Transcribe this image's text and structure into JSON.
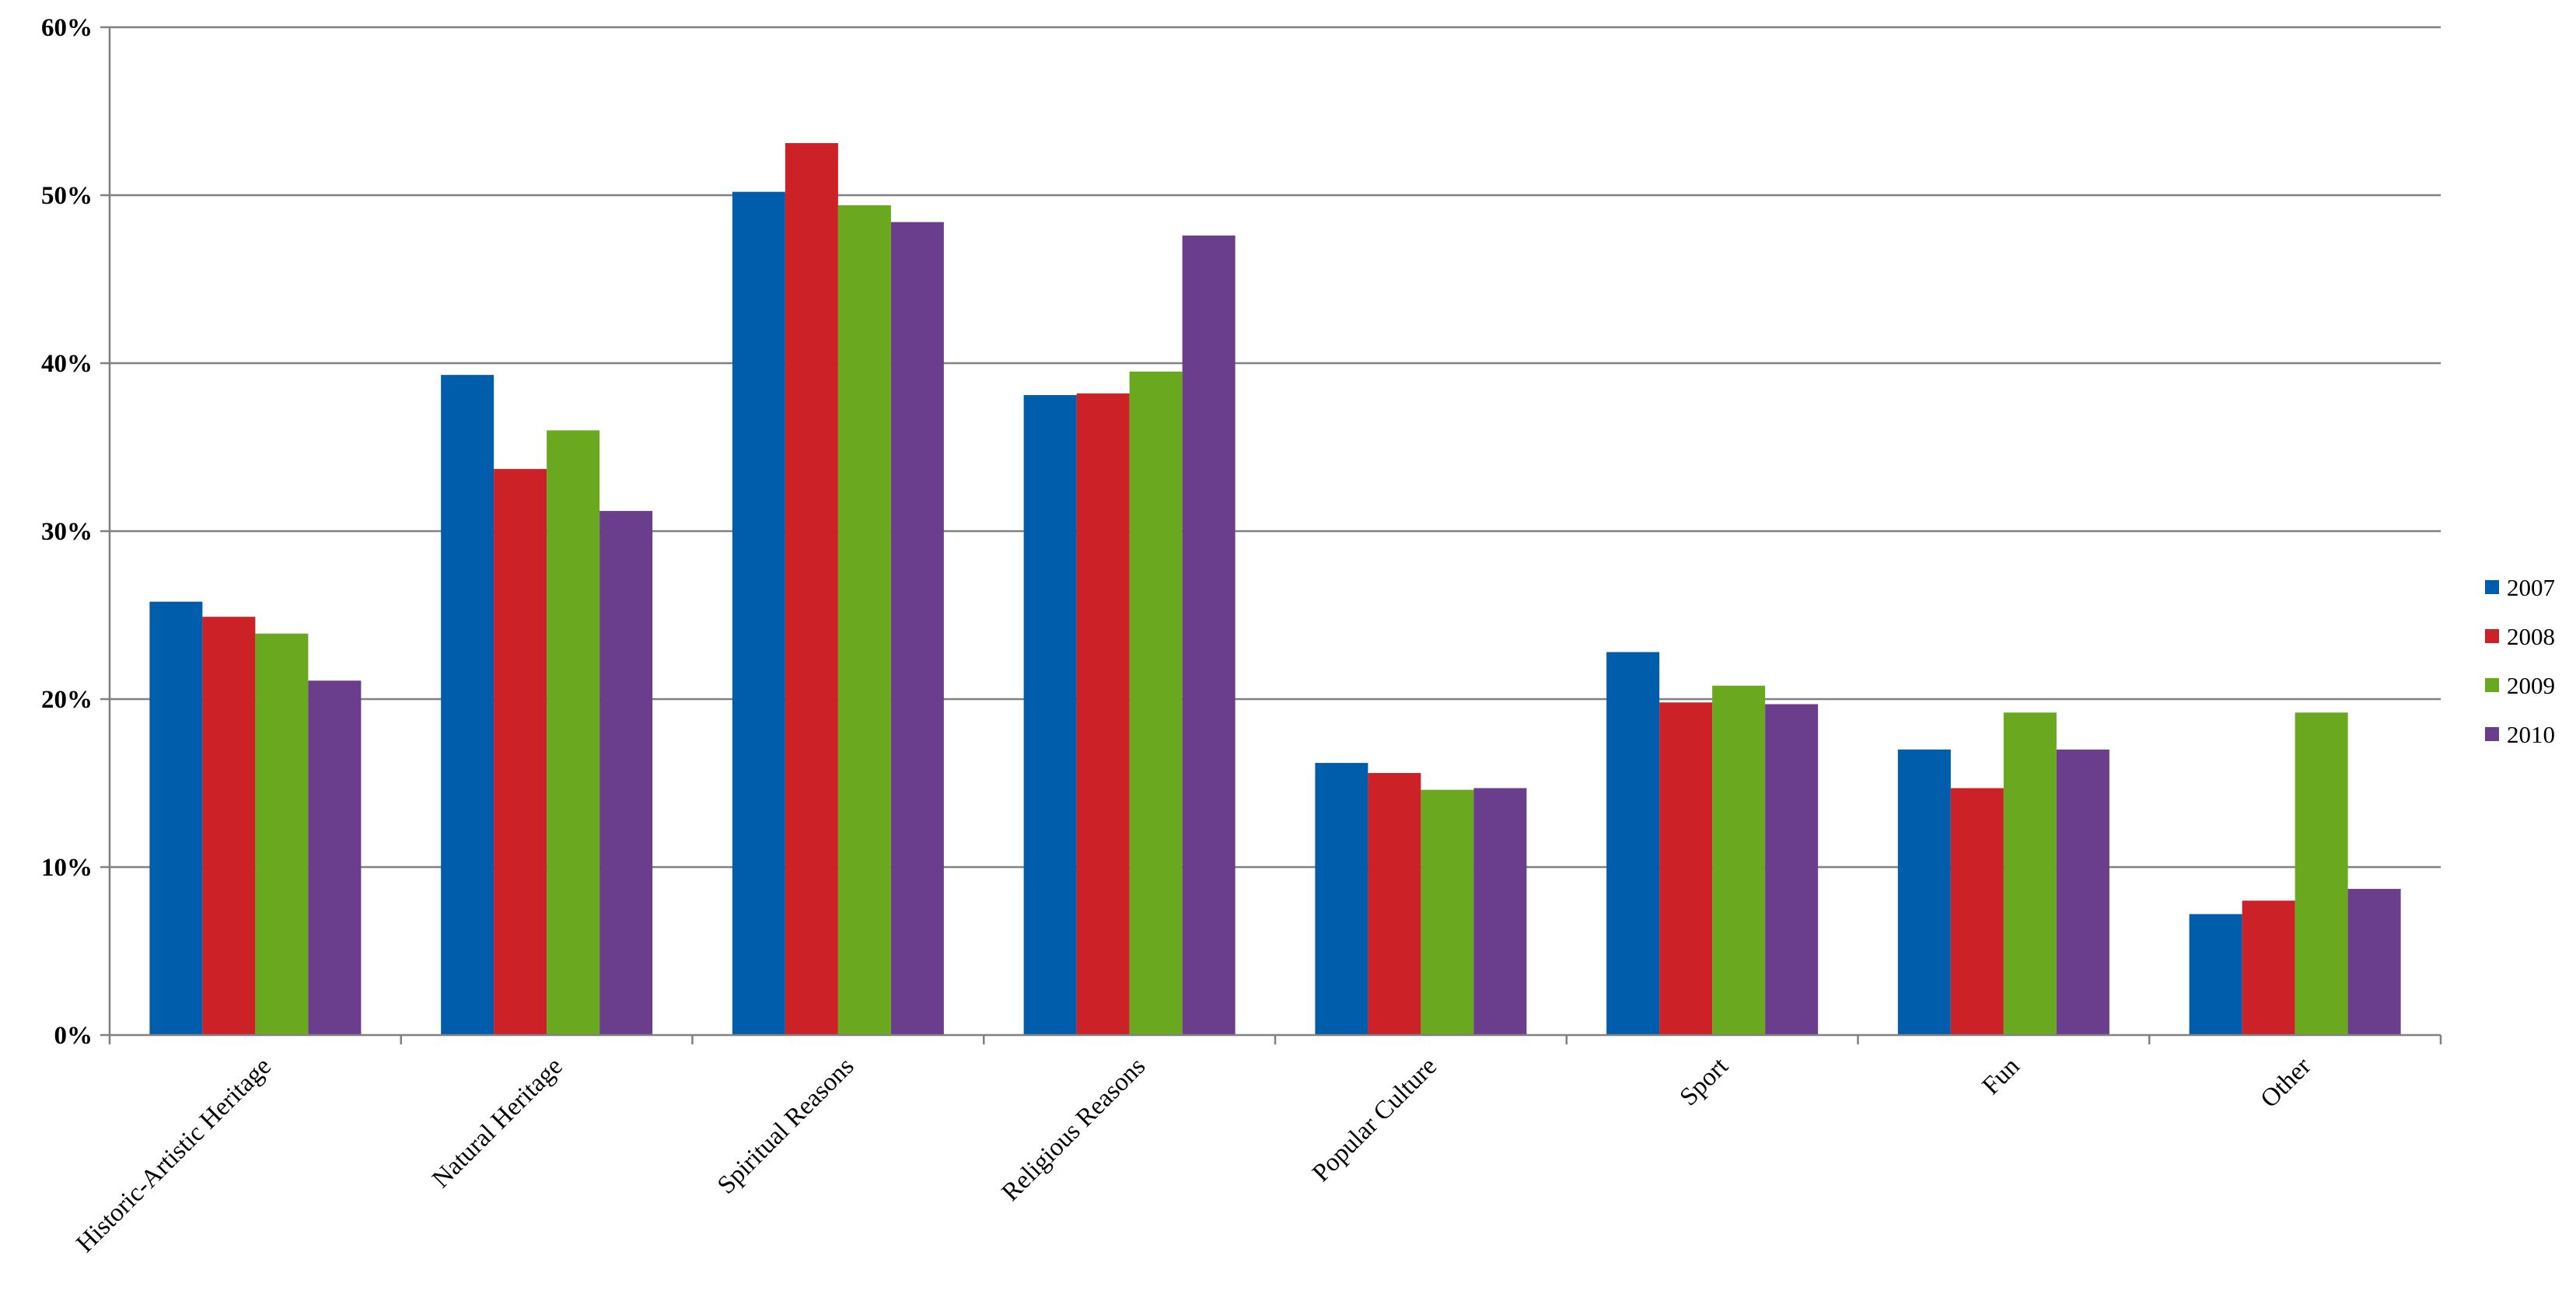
{
  "chart_data": {
    "type": "bar",
    "title": "",
    "xlabel": "",
    "ylabel": "",
    "ylim": [
      0,
      0.6
    ],
    "yticks": [
      0,
      0.1,
      0.2,
      0.3,
      0.4,
      0.5,
      0.6
    ],
    "ytick_labels": [
      "0%",
      "10%",
      "20%",
      "30%",
      "40%",
      "50%",
      "60%"
    ],
    "grid": "horizontal",
    "legend_position": "right",
    "categories": [
      "Historic-Artistic Heritage",
      "Natural Heritage",
      "Spiritual Reasons",
      "Religious Reasons",
      "Popular Culture",
      "Sport",
      "Fun",
      "Other"
    ],
    "series": [
      {
        "name": "2007",
        "color": "#005dac",
        "values": [
          0.258,
          0.393,
          0.502,
          0.381,
          0.162,
          0.228,
          0.17,
          0.072
        ]
      },
      {
        "name": "2008",
        "color": "#cc2127",
        "values": [
          0.249,
          0.337,
          0.531,
          0.382,
          0.156,
          0.198,
          0.147,
          0.08
        ]
      },
      {
        "name": "2009",
        "color": "#6aa820",
        "values": [
          0.239,
          0.36,
          0.494,
          0.395,
          0.146,
          0.208,
          0.192,
          0.192
        ]
      },
      {
        "name": "2010",
        "color": "#6a3e8c",
        "values": [
          0.211,
          0.312,
          0.484,
          0.476,
          0.147,
          0.197,
          0.17,
          0.087
        ]
      }
    ]
  }
}
